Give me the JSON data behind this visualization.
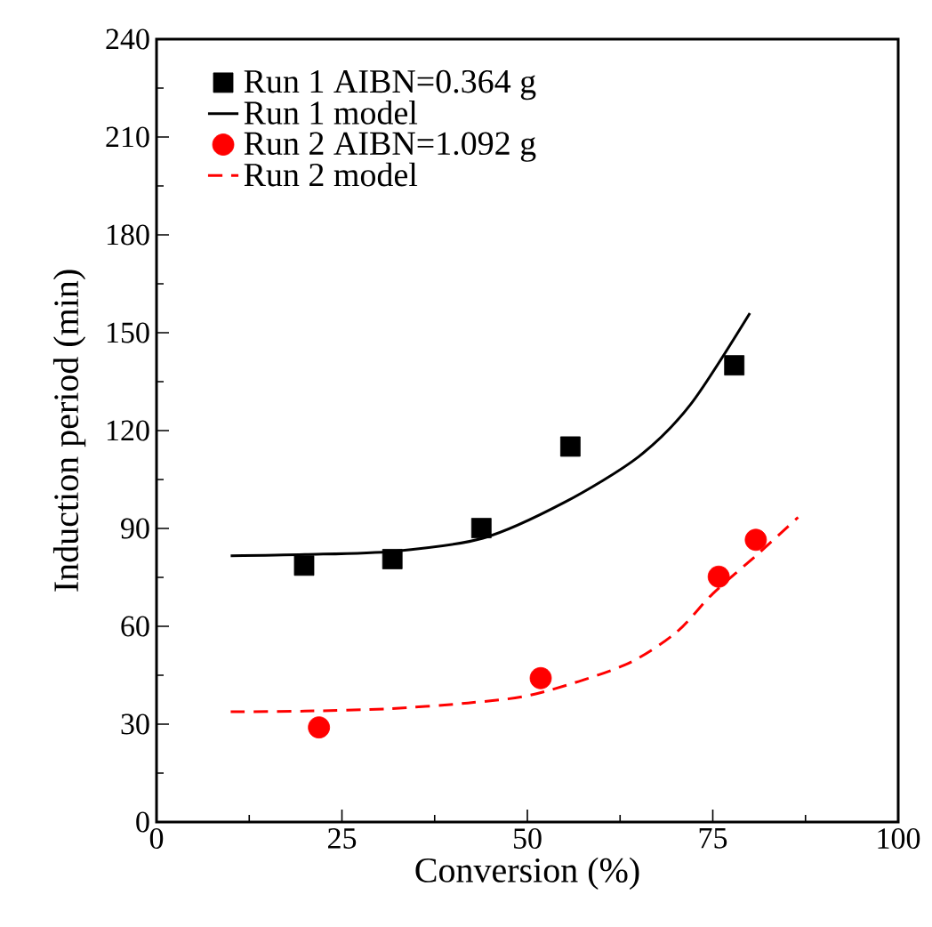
{
  "chart_data": {
    "type": "scatter",
    "xlabel": "Conversion (%)",
    "ylabel": "Induction period (min)",
    "xlim": [
      0,
      100
    ],
    "xticks": [
      0,
      25,
      50,
      75,
      100
    ],
    "ylim": [
      0,
      240
    ],
    "yticks": [
      0,
      30,
      60,
      90,
      120,
      150,
      180,
      210,
      240
    ],
    "legend": "top left",
    "grid": false,
    "series": [
      {
        "name": "Run 1 AIBN=0.364 g",
        "marker": "square",
        "color": "#000000",
        "x": [
          19.9,
          31.8,
          43.8,
          55.8,
          77.9
        ],
        "values": [
          78.6,
          80.6,
          90.1,
          115.1,
          140
        ]
      },
      {
        "name": "Run 1 model",
        "type": "line",
        "line_style": "solid",
        "marker": "none",
        "color": "#000000",
        "x": [
          10,
          20,
          32,
          44,
          55,
          65,
          72,
          80
        ],
        "values": [
          81.6,
          82,
          83,
          87,
          98,
          112,
          128,
          156
        ]
      },
      {
        "name": "Run 2 AIBN=1.092 g",
        "marker": "circle",
        "color": "#ff0000",
        "x": [
          21.9,
          51.8,
          75.8,
          80.8
        ],
        "values": [
          29,
          44.1,
          75.2,
          86.5
        ]
      },
      {
        "name": "Run 2 model",
        "type": "line",
        "line_style": "dashed",
        "marker": "none",
        "color": "#ff0000",
        "x": [
          10,
          20,
          31,
          42,
          51,
          63,
          70,
          75,
          81,
          86.5
        ],
        "values": [
          33.8,
          34,
          34.7,
          36.5,
          39.2,
          48,
          58,
          70,
          82,
          93.4
        ]
      }
    ]
  }
}
